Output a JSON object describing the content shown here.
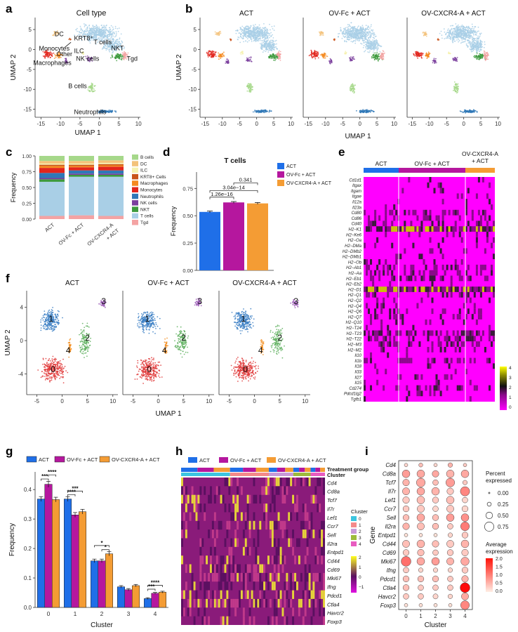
{
  "panel_letters": [
    "a",
    "b",
    "c",
    "d",
    "e",
    "f",
    "g",
    "h",
    "i"
  ],
  "colors": {
    "ACT": "#1f6fe8",
    "OVFc": "#b5179e",
    "OVCX": "#f49c34",
    "B cells": "#a6d88a",
    "DC": "#f3c27a",
    "ILC": "#f6f2b0",
    "KRT8+ Cells": "#c9541c",
    "Macrophages": "#f58a1f",
    "Monocytes": "#e2261d",
    "Neutrophils": "#2f78b7",
    "NK cells": "#7b3f9e",
    "NKT": "#3d9a3d",
    "T cells": "#a9cfe6",
    "Tgd": "#f4a3a3",
    "c0": "#e03a3a",
    "c1": "#3b7fc4",
    "c2": "#5fb05f",
    "c3": "#9b59b6",
    "c4": "#f28c1c"
  },
  "chart_data": [
    {
      "panel": "a",
      "type": "scatter",
      "title": "Cell type",
      "xlabel": "UMAP 1",
      "ylabel": "UMAP 2",
      "xticks": [
        -15,
        -10,
        -5,
        0,
        5,
        10
      ],
      "yticks": [
        -15,
        -10,
        -5,
        0,
        5
      ],
      "xlim": [
        -16.5,
        10.5
      ],
      "ylim": [
        -17,
        8
      ],
      "labels": [
        {
          "text": "DC",
          "x": -11.5,
          "y": 3.3
        },
        {
          "text": "KRT8⁺",
          "x": -6.5,
          "y": 2.3
        },
        {
          "text": "T cells",
          "x": -1.5,
          "y": 1.3
        },
        {
          "text": "NKT",
          "x": 3,
          "y": -0.2
        },
        {
          "text": "Monocytes",
          "x": -15.5,
          "y": -0.3
        },
        {
          "text": "ILC",
          "x": -6.5,
          "y": -0.9
        },
        {
          "text": "Other",
          "x": -11,
          "y": -1.7
        },
        {
          "text": "NK cells",
          "x": -6,
          "y": -2.8
        },
        {
          "text": "Tgd",
          "x": 7,
          "y": -2.8
        },
        {
          "text": "Macrophages",
          "x": -17,
          "y": -3.9
        },
        {
          "text": "B cells",
          "x": -8,
          "y": -9.7
        },
        {
          "text": "Neutrophils",
          "x": -6.5,
          "y": -16.2
        }
      ]
    },
    {
      "panel": "b",
      "type": "scatter",
      "facets": [
        "ACT",
        "OV-Fc + ACT",
        "OV-CXCR4-A + ACT"
      ],
      "xlabel": "UMAP 1",
      "ylabel": "UMAP 2",
      "xticks": [
        -15,
        -10,
        -5,
        0,
        5,
        10
      ],
      "yticks": [
        -15,
        -10,
        -5,
        0,
        5
      ],
      "xlim": [
        -16.5,
        10.5
      ],
      "ylim": [
        -17,
        8
      ]
    },
    {
      "panel": "c",
      "type": "bar",
      "stacked": true,
      "ylabel": "Frequency",
      "categories": [
        "ACT",
        "OV-Fc + ACT",
        "OV-CXCR4-A\n+ ACT"
      ],
      "yticks": [
        "0.00",
        "0.25",
        "0.50",
        "0.75",
        "1.00"
      ],
      "ylim": [
        0,
        1
      ],
      "legend": [
        "B cells",
        "DC",
        "ILC",
        "KRT8+ Cells",
        "Macrophages",
        "Monocytes",
        "Neutrophils",
        "NK cells",
        "NKT",
        "T cells",
        "Tgd"
      ],
      "series": [
        {
          "name": "Tgd",
          "values": [
            0.05,
            0.06,
            0.05
          ]
        },
        {
          "name": "T cells",
          "values": [
            0.54,
            0.61,
            0.62
          ]
        },
        {
          "name": "NKT",
          "values": [
            0.04,
            0.03,
            0.03
          ]
        },
        {
          "name": "NK cells",
          "values": [
            0.02,
            0.02,
            0.02
          ]
        },
        {
          "name": "Neutrophils",
          "values": [
            0.08,
            0.05,
            0.05
          ]
        },
        {
          "name": "Monocytes",
          "values": [
            0.08,
            0.05,
            0.06
          ]
        },
        {
          "name": "Macrophages",
          "values": [
            0.03,
            0.02,
            0.02
          ]
        },
        {
          "name": "KRT8+ Cells",
          "values": [
            0.02,
            0.02,
            0.02
          ]
        },
        {
          "name": "ILC",
          "values": [
            0.02,
            0.02,
            0.02
          ]
        },
        {
          "name": "DC",
          "values": [
            0.04,
            0.04,
            0.04
          ]
        },
        {
          "name": "B cells",
          "values": [
            0.08,
            0.08,
            0.07
          ]
        }
      ]
    },
    {
      "panel": "d",
      "type": "bar",
      "title": "T cells",
      "ylabel": "Frequency",
      "categories": [
        "ACT",
        "OV-Fc + ACT",
        "OV-CXCR4-A + ACT"
      ],
      "values": [
        0.535,
        0.622,
        0.613
      ],
      "errors": [
        0.008,
        0.008,
        0.008
      ],
      "yticks": [
        "0.00",
        "0.25",
        "0.50",
        "0.75"
      ],
      "ylim": [
        0,
        0.9
      ],
      "comparisons": [
        {
          "a": 0,
          "b": 1,
          "label": "1.26e−16"
        },
        {
          "a": 0,
          "b": 2,
          "label": "3.04e−14"
        },
        {
          "a": 1,
          "b": 2,
          "label": "0.341"
        }
      ],
      "legend": [
        "ACT",
        "OV-Fc + ACT",
        "OV-CXCR4-A + ACT"
      ]
    },
    {
      "panel": "e",
      "type": "heatmap",
      "groups": [
        "ACT",
        "OV-Fc + ACT",
        "OV-CXCR4-A\n+ ACT"
      ],
      "genes": [
        "Cd1d1",
        "Itgax",
        "Itgam",
        "Itgae",
        "Il12a",
        "Il23a",
        "Cd80",
        "Cd86",
        "Cd40",
        "H2−K1",
        "H2−Ke6",
        "H2−Oa",
        "H2−DMa",
        "H2−DMb2",
        "H2−DMb1",
        "H2−Ob",
        "H2−Ab1",
        "H2−Aa",
        "H2−Eb1",
        "H2−Eb2",
        "H2−D1",
        "H2−Q1",
        "H2−Q2",
        "H2−Q4",
        "H2−Q6",
        "H2−Q7",
        "H2−Q10",
        "H2−T24",
        "H2−T23",
        "H2−T22",
        "H2−M3",
        "H2−M2",
        "Il10",
        "Il1b",
        "Il18",
        "Il33",
        "Il27",
        "Il15",
        "Cd274",
        "Pdcd1lg2",
        "Tgfb1"
      ],
      "scale_ticks": [
        "0",
        "1",
        "2",
        "3",
        "4"
      ]
    },
    {
      "panel": "f",
      "type": "scatter",
      "facets": [
        "ACT",
        "OV-Fc + ACT",
        "OV-CXCR4-A + ACT"
      ],
      "xlabel": "UMAP 1",
      "ylabel": "UMAP 2",
      "xticks": [
        -5,
        0,
        5,
        10
      ],
      "yticks": [
        -4,
        0,
        4
      ],
      "xlim": [
        -7,
        11
      ],
      "ylim": [
        -6.5,
        6
      ],
      "clusters": [
        "0",
        "1",
        "2",
        "3",
        "4"
      ]
    },
    {
      "panel": "g",
      "type": "bar",
      "xlabel": "Cluster",
      "ylabel": "Frequency",
      "categories": [
        "0",
        "1",
        "2",
        "3",
        "4"
      ],
      "legend": [
        "ACT",
        "OV-Fc + ACT",
        "OV-CXCR4-A + ACT"
      ],
      "series": [
        {
          "name": "ACT",
          "values": [
            0.368,
            0.368,
            0.158,
            0.07,
            0.03
          ],
          "errors": [
            0.008,
            0.008,
            0.006,
            0.004,
            0.003
          ]
        },
        {
          "name": "OV-Fc + ACT",
          "values": [
            0.418,
            0.314,
            0.158,
            0.06,
            0.048
          ],
          "errors": [
            0.01,
            0.008,
            0.006,
            0.004,
            0.003
          ]
        },
        {
          "name": "OV-CXCR4-A + ACT",
          "values": [
            0.366,
            0.325,
            0.182,
            0.074,
            0.052
          ],
          "errors": [
            0.008,
            0.008,
            0.007,
            0.004,
            0.003
          ]
        }
      ],
      "yticks": [
        "0.0",
        "0.1",
        "0.2",
        "0.3",
        "0.4"
      ],
      "ylim": [
        0,
        0.46
      ],
      "annotations": [
        {
          "cat": 0,
          "a": 0,
          "b": 1,
          "label": "***",
          "y": 0.436
        },
        {
          "cat": 0,
          "a": 1,
          "b": 2,
          "label": "****",
          "y": 0.45
        },
        {
          "cat": 1,
          "a": 0,
          "b": 1,
          "label": "****",
          "y": 0.383
        },
        {
          "cat": 1,
          "a": 0,
          "b": 2,
          "label": "***",
          "y": 0.395
        },
        {
          "cat": 2,
          "a": 0,
          "b": 2,
          "label": "*",
          "y": 0.21
        },
        {
          "cat": 2,
          "a": 1,
          "b": 2,
          "label": "*",
          "y": 0.196
        },
        {
          "cat": 4,
          "a": 0,
          "b": 1,
          "label": "***",
          "y": 0.062
        },
        {
          "cat": 4,
          "a": 0,
          "b": 2,
          "label": "****",
          "y": 0.075
        }
      ]
    },
    {
      "panel": "h",
      "type": "heatmap",
      "legend": [
        "ACT",
        "OV-Fc + ACT",
        "OV-CXCR4-A + ACT"
      ],
      "track_labels": [
        "Treatment group",
        "Cluster"
      ],
      "cluster_legend_title": "Cluster",
      "clusters": [
        "0",
        "1",
        "2",
        "3",
        "4"
      ],
      "genes": [
        "Cd4",
        "Cd8a",
        "Tcf7",
        "Il7r",
        "Lef1",
        "Ccr7",
        "Sell",
        "Il2ra",
        "Entpd1",
        "Cd44",
        "Cd69",
        "Mki67",
        "Ifng",
        "Pdcd1",
        "Ctla4",
        "Havcr2",
        "Foxp3"
      ],
      "scale_ticks": [
        "2",
        "1",
        "0",
        "−1"
      ]
    },
    {
      "panel": "i",
      "type": "scatter",
      "xlabel": "Cluster",
      "ylabel": "Gene",
      "clusters": [
        "0",
        "1",
        "2",
        "3",
        "4"
      ],
      "genes": [
        "Cd4",
        "Cd8a",
        "Tcf7",
        "Il7r",
        "Lef1",
        "Ccr7",
        "Sell",
        "Il2ra",
        "Entpd1",
        "Cd44",
        "Cd69",
        "Mki67",
        "Ifng",
        "Pdcd1",
        "Ctla4",
        "Havcr2",
        "Foxp3"
      ],
      "percent": [
        [
          0.2,
          0.25,
          0.2,
          0.3,
          0.2
        ],
        [
          0.6,
          0.6,
          0.5,
          0.6,
          0.6
        ],
        [
          0.5,
          0.7,
          0.4,
          0.7,
          0.3
        ],
        [
          0.55,
          0.6,
          0.6,
          0.5,
          0.75
        ],
        [
          0.5,
          0.6,
          0.45,
          0.6,
          0.4
        ],
        [
          0.45,
          0.55,
          0.4,
          0.55,
          0.45
        ],
        [
          0.45,
          0.6,
          0.45,
          0.6,
          0.6
        ],
        [
          0.5,
          0.55,
          0.45,
          0.4,
          0.7
        ],
        [
          0.2,
          0.2,
          0.2,
          0.3,
          0.45
        ],
        [
          0.55,
          0.6,
          0.5,
          0.55,
          0.6
        ],
        [
          0.45,
          0.5,
          0.4,
          0.45,
          0.5
        ],
        [
          0.8,
          0.6,
          0.6,
          0.55,
          0.65
        ],
        [
          0.4,
          0.3,
          0.3,
          0.3,
          0.45
        ],
        [
          0.45,
          0.45,
          0.45,
          0.4,
          0.5
        ],
        [
          0.45,
          0.4,
          0.4,
          0.4,
          0.8
        ],
        [
          0.4,
          0.4,
          0.35,
          0.3,
          0.55
        ],
        [
          0.2,
          0.2,
          0.2,
          0.2,
          0.7
        ]
      ],
      "expression": [
        [
          0.2,
          0.4,
          0.2,
          0.5,
          0.3
        ],
        [
          0.7,
          0.6,
          0.6,
          0.5,
          0.6
        ],
        [
          0.5,
          0.6,
          0.4,
          0.7,
          0.3
        ],
        [
          0.5,
          0.6,
          0.5,
          0.3,
          0.9
        ],
        [
          0.3,
          0.4,
          0.3,
          0.4,
          0.2
        ],
        [
          0.3,
          0.3,
          0.2,
          0.3,
          0.2
        ],
        [
          0.4,
          0.6,
          0.4,
          0.7,
          0.8
        ],
        [
          0.5,
          0.4,
          0.4,
          0.3,
          1.0
        ],
        [
          0.1,
          0.1,
          0.1,
          0.2,
          0.3
        ],
        [
          0.4,
          0.5,
          0.4,
          0.3,
          0.5
        ],
        [
          0.3,
          0.4,
          0.3,
          0.3,
          0.3
        ],
        [
          1.1,
          0.6,
          0.7,
          0.5,
          0.6
        ],
        [
          0.3,
          0.2,
          0.2,
          0.2,
          0.3
        ],
        [
          0.4,
          0.4,
          0.4,
          0.3,
          0.5
        ],
        [
          0.4,
          0.3,
          0.3,
          0.3,
          2.0
        ],
        [
          0.3,
          0.3,
          0.2,
          0.2,
          0.6
        ],
        [
          0.1,
          0.1,
          0.1,
          0.1,
          0.9
        ]
      ],
      "size_legend_title": [
        "Percent",
        "expressed"
      ],
      "size_legend": [
        "0.00",
        "0.25",
        "0.50",
        "0.75"
      ],
      "color_legend_title": [
        "Average",
        "expression"
      ],
      "color_ticks": [
        "2.0",
        "1.5",
        "1.0",
        "0.5",
        "0.0"
      ]
    }
  ]
}
